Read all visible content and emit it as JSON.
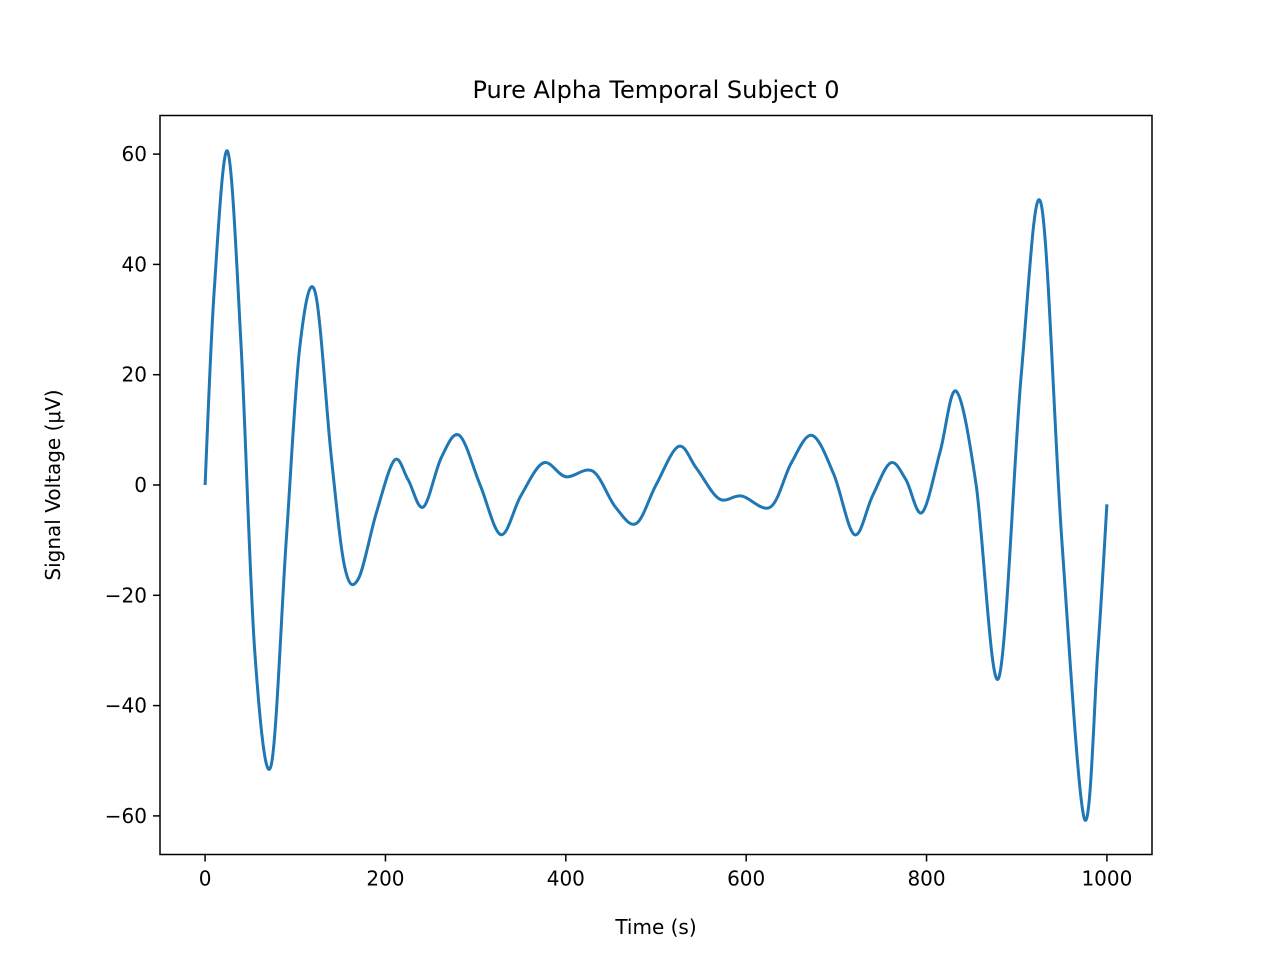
{
  "chart_data": {
    "type": "line",
    "title": "Pure Alpha Temporal Subject 0",
    "xlabel": "Time (s)",
    "ylabel": "Signal Voltage (μV)",
    "xlim": [
      -50,
      1050
    ],
    "ylim": [
      -67,
      67
    ],
    "x_ticks": [
      0,
      200,
      400,
      600,
      800,
      1000
    ],
    "x_tick_labels": [
      "0",
      "200",
      "400",
      "600",
      "800",
      "1000"
    ],
    "y_ticks": [
      60,
      40,
      20,
      0,
      -20,
      -40,
      -60
    ],
    "y_tick_labels": [
      "60",
      "40",
      "20",
      "0",
      "−20",
      "−40",
      "−60"
    ],
    "grid": false,
    "legend": "none",
    "series": [
      {
        "color": "#1f77b4",
        "x": [
          0,
          10,
          25,
          40,
          55,
          73,
          90,
          105,
          122,
          140,
          155,
          170,
          190,
          210,
          225,
          242,
          262,
          282,
          305,
          328,
          350,
          375,
          400,
          430,
          455,
          478,
          500,
          525,
          545,
          570,
          595,
          627,
          650,
          673,
          697,
          720,
          740,
          760,
          777,
          795,
          815,
          833,
          855,
          880,
          905,
          927,
          950,
          975,
          990,
          1000
        ],
        "y": [
          0,
          35,
          60.5,
          25,
          -30,
          -51,
          -10,
          25,
          35,
          5,
          -15,
          -17,
          -5,
          4.5,
          1,
          -4,
          5,
          9,
          0,
          -9,
          -2,
          4,
          1.5,
          2.5,
          -4,
          -7,
          0,
          7,
          3,
          -2.5,
          -2,
          -4,
          4,
          9,
          2,
          -9,
          -2,
          4,
          1,
          -5,
          6,
          17,
          0,
          -35,
          20,
          51,
          -10,
          -60.5,
          -30,
          -3.5
        ]
      }
    ]
  }
}
